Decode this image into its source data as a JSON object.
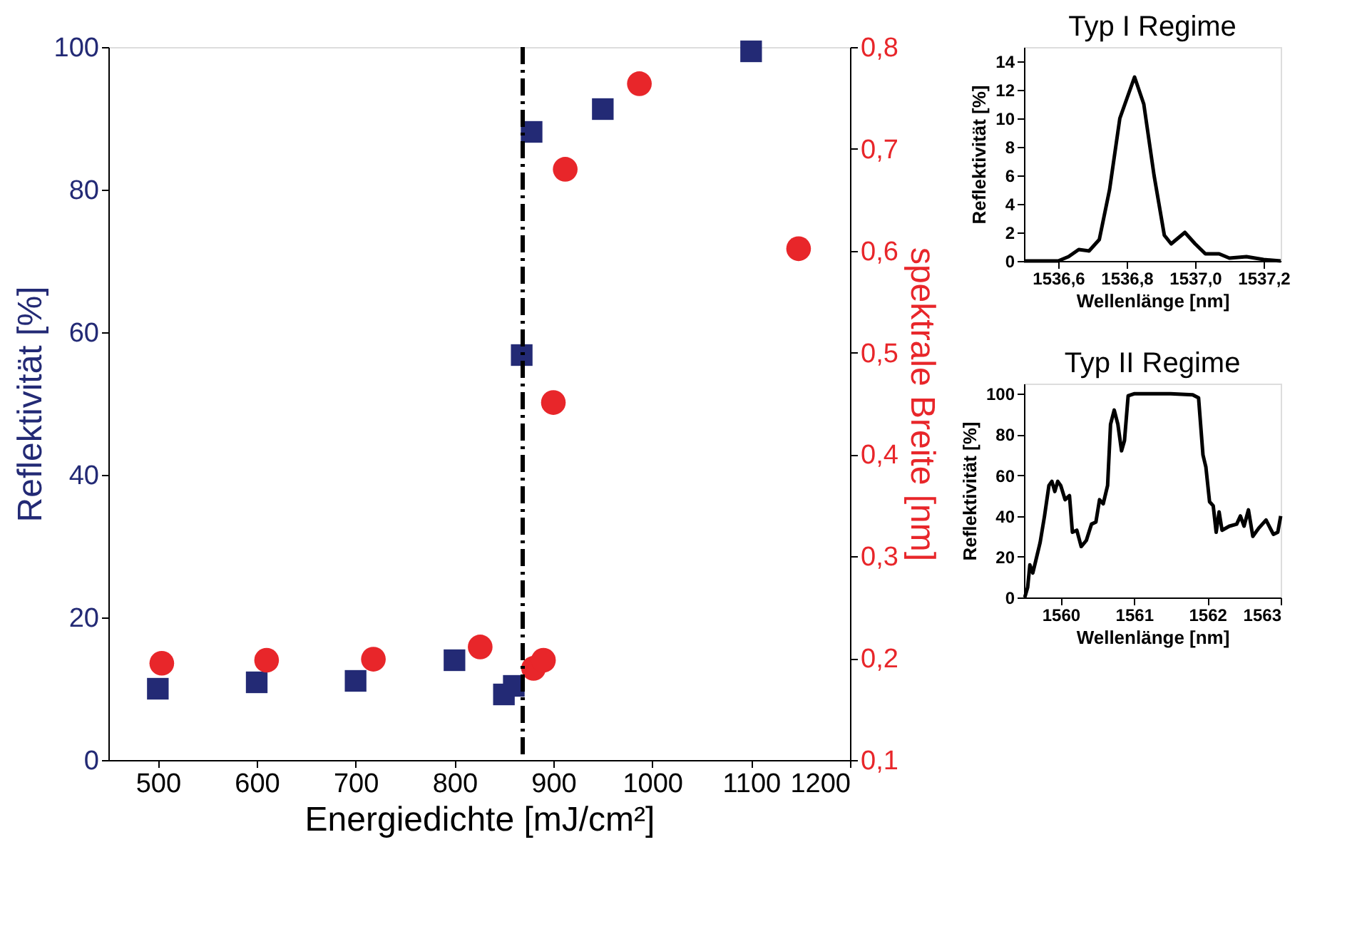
{
  "chart_data": [
    {
      "type": "scatter",
      "xlabel": "Energiedichte [mJ/cm²]",
      "ylabel": "Reflektivität [%]",
      "y2label": "spektrale Breite [nm]",
      "xlim": [
        450,
        1200
      ],
      "xticks": [
        500,
        600,
        700,
        800,
        900,
        1000,
        1100,
        1200
      ],
      "ylim": [
        0,
        100
      ],
      "yticks": [
        0,
        20,
        40,
        60,
        80,
        100
      ],
      "y2lim": [
        0.1,
        0.8
      ],
      "y2ticks": [
        {
          "value": 0.1,
          "label": "0,1"
        },
        {
          "value": 0.2,
          "label": "0,2"
        },
        {
          "value": 0.3,
          "label": "0,3"
        },
        {
          "value": 0.4,
          "label": "0,4"
        },
        {
          "value": 0.5,
          "label": "0,5"
        },
        {
          "value": 0.6,
          "label": "0,6"
        },
        {
          "value": 0.7,
          "label": "0,7"
        },
        {
          "value": 0.8,
          "label": "0,8"
        }
      ],
      "grid": false,
      "series": [
        {
          "color": "#232a75",
          "marker": "square",
          "x": [
            500,
            600,
            700,
            800,
            850,
            860,
            868,
            878,
            950,
            1100
          ],
          "values": [
            10.0,
            10.9,
            11.1,
            14.0,
            9.2,
            10.4,
            56.8,
            88.1,
            91.3,
            99.4
          ]
        },
        {
          "color": "#e8262a",
          "marker": "circle",
          "axis": "y2",
          "x": [
            504,
            610,
            718,
            826,
            880,
            890,
            900,
            912,
            987,
            1148
          ],
          "values": [
            0.195,
            0.198,
            0.199,
            0.211,
            0.19,
            0.198,
            0.451,
            0.68,
            0.764,
            0.602
          ]
        }
      ],
      "ref_lines": [
        {
          "axis": "x",
          "value": 869,
          "color": "#000000",
          "line_style": "dashdot"
        }
      ]
    },
    {
      "type": "line",
      "title": "Typ I Regime",
      "xlabel": "Wellenlänge [nm]",
      "ylabel": "Reflektivität [%]",
      "xlim": [
        1536.5,
        1537.25
      ],
      "xticks": [
        {
          "value": 1536.6,
          "label": "1536,6"
        },
        {
          "value": 1536.8,
          "label": "1536,8"
        },
        {
          "value": 1537.0,
          "label": "1537,0"
        },
        {
          "value": 1537.2,
          "label": "1537,2"
        }
      ],
      "ylim": [
        0,
        15
      ],
      "yticks": [
        0,
        2,
        4,
        6,
        8,
        10,
        12,
        14
      ],
      "grid": false,
      "series": [
        {
          "color": "#000000",
          "x": [
            1536.5,
            1536.6,
            1536.63,
            1536.66,
            1536.69,
            1536.72,
            1536.75,
            1536.78,
            1536.823,
            1536.85,
            1536.88,
            1536.91,
            1536.93,
            1536.97,
            1537.0,
            1537.03,
            1537.07,
            1537.1,
            1537.15,
            1537.2,
            1537.25
          ],
          "values": [
            0,
            0,
            0.3,
            0.8,
            0.7,
            1.5,
            5,
            10,
            12.9,
            11,
            6,
            1.8,
            1.2,
            2.0,
            1.2,
            0.5,
            0.5,
            0.2,
            0.3,
            0.1,
            0
          ]
        }
      ]
    },
    {
      "type": "line",
      "title": "Typ II Regime",
      "xlabel": "Wellenlänge [nm]",
      "ylabel": "Reflektivität [%]",
      "xlim": [
        1559.5,
        1563
      ],
      "xticks": [
        1560,
        1561,
        1562,
        1563
      ],
      "ylim": [
        0,
        105
      ],
      "yticks": [
        0,
        20,
        40,
        60,
        80,
        100
      ],
      "grid": false,
      "series": [
        {
          "color": "#000000",
          "x": [
            1559.51,
            1559.55,
            1559.58,
            1559.62,
            1559.66,
            1559.72,
            1559.78,
            1559.84,
            1559.88,
            1559.92,
            1559.96,
            1560.0,
            1560.06,
            1560.12,
            1560.16,
            1560.22,
            1560.28,
            1560.35,
            1560.42,
            1560.48,
            1560.53,
            1560.58,
            1560.64,
            1560.68,
            1560.73,
            1560.78,
            1560.83,
            1560.87,
            1560.92,
            1561.0,
            1561.5,
            1561.8,
            1561.88,
            1561.94,
            1561.98,
            1562.03,
            1562.08,
            1562.12,
            1562.16,
            1562.2,
            1562.3,
            1562.4,
            1562.45,
            1562.5,
            1562.56,
            1562.62,
            1562.7,
            1562.8,
            1562.9,
            1562.96,
            1563.0
          ],
          "values": [
            0,
            5,
            16,
            12,
            18,
            27,
            40,
            55,
            57,
            52,
            57,
            55,
            48,
            50,
            32,
            33,
            25,
            28,
            36,
            37,
            48,
            46,
            55,
            85,
            92,
            85,
            72,
            77,
            99,
            100,
            100,
            99.5,
            98,
            70,
            64,
            47,
            45,
            32,
            42,
            33,
            35,
            36,
            40,
            35,
            43,
            30,
            34,
            38,
            31,
            32,
            40
          ]
        }
      ]
    }
  ]
}
